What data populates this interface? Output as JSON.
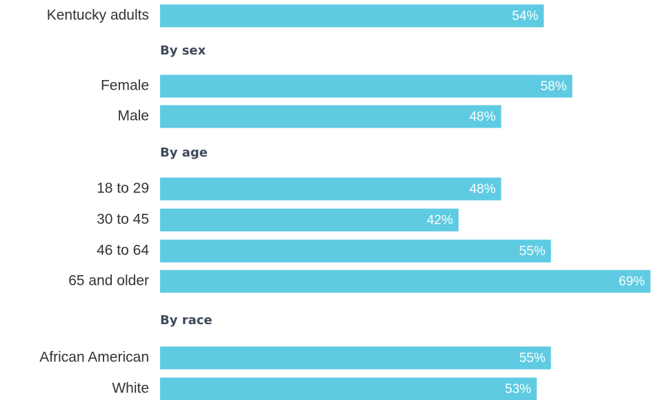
{
  "chart_data": {
    "type": "bar",
    "orientation": "horizontal",
    "title": "",
    "xlabel": "",
    "ylabel": "",
    "xlim": [
      0,
      70
    ],
    "grid": false,
    "legend": "none",
    "bar_color": "#5ecbe2",
    "value_suffix": "%",
    "rows": [
      {
        "kind": "bar",
        "label": "Kentucky adults",
        "value": 54
      },
      {
        "kind": "group",
        "label": "By sex"
      },
      {
        "kind": "bar",
        "label": "Female",
        "value": 58
      },
      {
        "kind": "bar",
        "label": "Male",
        "value": 48
      },
      {
        "kind": "group",
        "label": "By age"
      },
      {
        "kind": "bar",
        "label": "18 to 29",
        "value": 48
      },
      {
        "kind": "bar",
        "label": "30 to 45",
        "value": 42
      },
      {
        "kind": "bar",
        "label": "46 to 64",
        "value": 55
      },
      {
        "kind": "bar",
        "label": "65 and older",
        "value": 69
      },
      {
        "kind": "group",
        "label": "By race"
      },
      {
        "kind": "bar",
        "label": "African American",
        "value": 55
      },
      {
        "kind": "bar",
        "label": "White",
        "value": 53
      }
    ]
  }
}
